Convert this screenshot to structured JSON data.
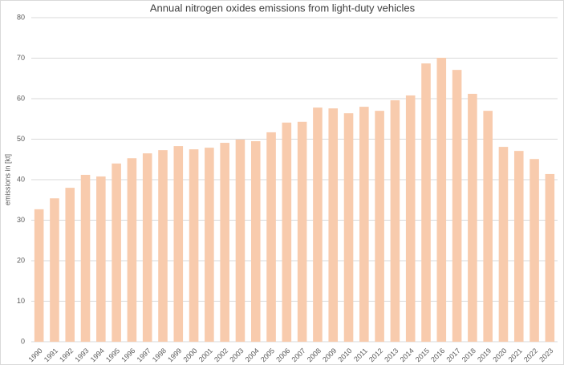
{
  "chart_data": {
    "type": "bar",
    "title": "Annual nitrogen oxides emissions from light-duty vehicles",
    "y_label": "emissions in [kt]",
    "categories": [
      "1990",
      "1991",
      "1992",
      "1993",
      "1994",
      "1995",
      "1996",
      "1997",
      "1998",
      "1999",
      "2000",
      "2001",
      "2002",
      "2003",
      "2004",
      "2005",
      "2006",
      "2007",
      "2008",
      "2009",
      "2010",
      "2011",
      "2012",
      "2013",
      "2014",
      "2015",
      "2016",
      "2017",
      "2018",
      "2019",
      "2020",
      "2021",
      "2022",
      "2023"
    ],
    "values": [
      32.7,
      35.4,
      38.0,
      41.2,
      40.8,
      44.0,
      45.3,
      46.5,
      47.3,
      48.3,
      47.5,
      47.9,
      49.1,
      49.9,
      49.5,
      51.7,
      54.1,
      54.3,
      57.8,
      57.6,
      56.4,
      58.0,
      57.0,
      59.6,
      60.8,
      68.7,
      70.1,
      67.1,
      61.2,
      57.0,
      48.1,
      47.1,
      45.1,
      41.4
    ],
    "color": "#f8cbad",
    "ylim": [
      0,
      80
    ],
    "yticks": [
      0,
      10,
      20,
      30,
      40,
      50,
      60,
      70,
      80
    ],
    "grid": true
  }
}
